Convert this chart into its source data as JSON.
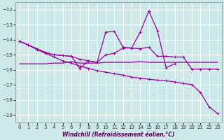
{
  "x": [
    0,
    1,
    2,
    3,
    4,
    5,
    6,
    7,
    8,
    9,
    10,
    11,
    12,
    13,
    14,
    15,
    16,
    17,
    18,
    19,
    20,
    21,
    22,
    23
  ],
  "y_top": [
    -14.1,
    -14.35,
    -14.6,
    -14.85,
    -15.0,
    -15.05,
    -15.1,
    -15.3,
    -15.4,
    -15.5,
    -15.0,
    -14.9,
    -14.55,
    -14.55,
    -14.6,
    -14.5,
    -15.1,
    -15.1,
    -15.15,
    -15.15,
    -15.95,
    -15.95,
    -15.95,
    -15.95
  ],
  "y_flat": [
    -15.6,
    -15.6,
    -15.6,
    -15.6,
    -15.55,
    -15.55,
    -15.45,
    -15.55,
    -15.55,
    -15.55,
    -15.5,
    -15.5,
    -15.5,
    -15.5,
    -15.45,
    -15.5,
    -15.5,
    -15.5,
    -15.5,
    -15.5,
    -15.5,
    -15.5,
    -15.5,
    -15.5
  ],
  "x_wild": [
    0,
    1,
    2,
    3,
    4,
    5,
    6,
    7,
    8,
    9,
    10,
    11,
    12,
    13,
    14,
    15,
    16,
    17,
    18,
    19,
    20,
    21,
    22,
    23
  ],
  "y_wild": [
    -14.1,
    -14.35,
    -14.6,
    -14.85,
    -15.0,
    -15.05,
    -15.1,
    -15.9,
    -15.4,
    -15.5,
    -13.5,
    -13.45,
    -14.5,
    -14.55,
    -13.5,
    -12.1,
    -13.4,
    -15.85,
    -15.6,
    null,
    null,
    null,
    null,
    null
  ],
  "y_diag": [
    -14.1,
    -14.35,
    -14.65,
    -14.9,
    -15.15,
    -15.4,
    -15.55,
    -15.75,
    -15.9,
    -16.05,
    -16.15,
    -16.25,
    -16.35,
    -16.48,
    -16.55,
    -16.62,
    -16.68,
    -16.72,
    -16.8,
    -16.9,
    -16.98,
    -17.5,
    -18.45,
    -18.9
  ],
  "bg_color": "#cce8e8",
  "line_color": "#990099",
  "grid_color": "#b0d8d8",
  "xlabel": "Windchill (Refroidissement éolien,°C)",
  "ylim": [
    -19.5,
    -11.5
  ],
  "xlim": [
    -0.5,
    23.5
  ],
  "yticks": [
    -19,
    -18,
    -17,
    -16,
    -15,
    -14,
    -13,
    -12
  ],
  "xticks": [
    0,
    1,
    2,
    3,
    4,
    5,
    6,
    7,
    8,
    9,
    10,
    11,
    12,
    13,
    14,
    15,
    16,
    17,
    18,
    19,
    20,
    21,
    22,
    23
  ]
}
